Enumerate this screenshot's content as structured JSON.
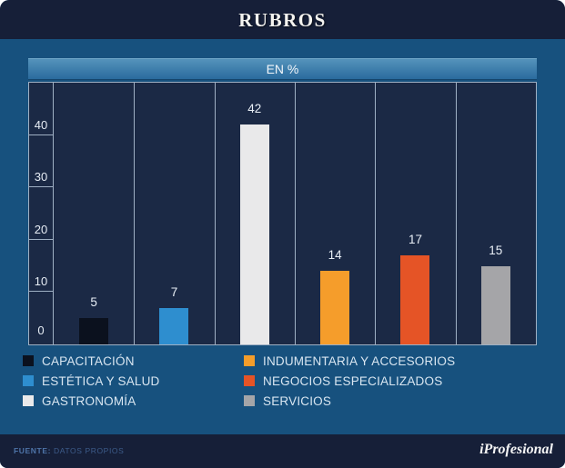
{
  "header": {
    "title": "RUBROS"
  },
  "subtitle_band": {
    "label": "EN %"
  },
  "footer": {
    "source_label": "FUENTE:",
    "source_value": "DATOS PROPIOS",
    "brand": "iProfesional"
  },
  "colors": {
    "card_background": "#17517E",
    "header_background": "#161F38",
    "plot_background": "#1B2945",
    "grid_line": "#9FB0C4",
    "subtitle_band_top": "#5593BB",
    "subtitle_band_bottom": "#2A6B9E",
    "text_light": "#E6ECF4"
  },
  "chart_data": {
    "type": "bar",
    "title": "RUBROS",
    "subtitle": "EN %",
    "unit": "%",
    "categories": [
      "CAPACITACIÓN",
      "ESTÉTICA Y SALUD",
      "GASTRONOMÍA",
      "INDUMENTARIA Y ACCESORIOS",
      "NEGOCIOS ESPECIALIZADOS",
      "SERVICIOS"
    ],
    "values": [
      5,
      7,
      42,
      14,
      17,
      15
    ],
    "bar_colors": [
      "#0B111E",
      "#2E8ECF",
      "#E9E9EA",
      "#F59D2B",
      "#E55426",
      "#A5A5A8"
    ],
    "value_labels": [
      "5",
      "7",
      "42",
      "14",
      "17",
      "15"
    ],
    "yticks": [
      0,
      10,
      20,
      30,
      40
    ],
    "ylim": [
      0,
      50
    ],
    "xlabel": "",
    "ylabel": "",
    "grid": "vertical-column-dividers",
    "legend_position": "bottom",
    "legend_columns": 2
  }
}
